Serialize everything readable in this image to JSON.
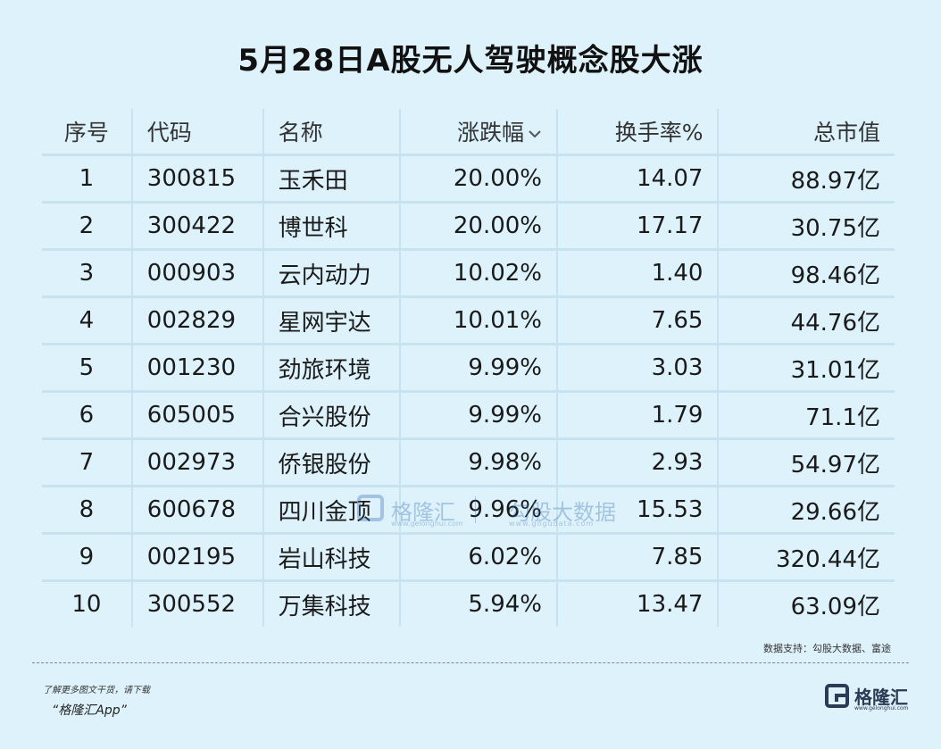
{
  "title": "5月28日A股无人驾驶概念股大涨",
  "table": {
    "headers": {
      "idx": "序号",
      "code": "代码",
      "name": "名称",
      "change": "涨跌幅",
      "turnover": "换手率%",
      "market_cap": "总市值"
    },
    "rows": [
      {
        "idx": "1",
        "code": "300815",
        "name": "玉禾田",
        "change": "20.00%",
        "turnover": "14.07",
        "market_cap": "88.97亿"
      },
      {
        "idx": "2",
        "code": "300422",
        "name": "博世科",
        "change": "20.00%",
        "turnover": "17.17",
        "market_cap": "30.75亿"
      },
      {
        "idx": "3",
        "code": "000903",
        "name": "云内动力",
        "change": "10.02%",
        "turnover": "1.40",
        "market_cap": "98.46亿"
      },
      {
        "idx": "4",
        "code": "002829",
        "name": "星网宇达",
        "change": "10.01%",
        "turnover": "7.65",
        "market_cap": "44.76亿"
      },
      {
        "idx": "5",
        "code": "001230",
        "name": "劲旅环境",
        "change": "9.99%",
        "turnover": "3.03",
        "market_cap": "31.01亿"
      },
      {
        "idx": "6",
        "code": "605005",
        "name": "合兴股份",
        "change": "9.99%",
        "turnover": "1.79",
        "market_cap": "71.1亿"
      },
      {
        "idx": "7",
        "code": "002973",
        "name": "侨银股份",
        "change": "9.98%",
        "turnover": "2.93",
        "market_cap": "54.97亿"
      },
      {
        "idx": "8",
        "code": "600678",
        "name": "四川金顶",
        "change": "9.96%",
        "turnover": "15.53",
        "market_cap": "29.66亿"
      },
      {
        "idx": "9",
        "code": "002195",
        "name": "岩山科技",
        "change": "6.02%",
        "turnover": "7.85",
        "market_cap": "320.44亿"
      },
      {
        "idx": "10",
        "code": "300552",
        "name": "万集科技",
        "change": "5.94%",
        "turnover": "13.47",
        "market_cap": "63.09亿"
      }
    ]
  },
  "watermark": {
    "brand": "格隆汇",
    "brand_sub": "www.gelonghui.com",
    "data": "勾股大数据",
    "data_sub": "www.gogudata.com"
  },
  "source": "数据支持：勾股大数据、富途",
  "footer": {
    "promo_line1": "了解更多图文干货，请下载",
    "promo_line2": "“格隆汇App”",
    "brand_name": "格隆汇",
    "brand_sub": "www.gelonghui.com"
  },
  "colors": {
    "background": "#ddf2fb",
    "positive_change": "#d9262f",
    "grid_line": "#c6e3ef"
  }
}
